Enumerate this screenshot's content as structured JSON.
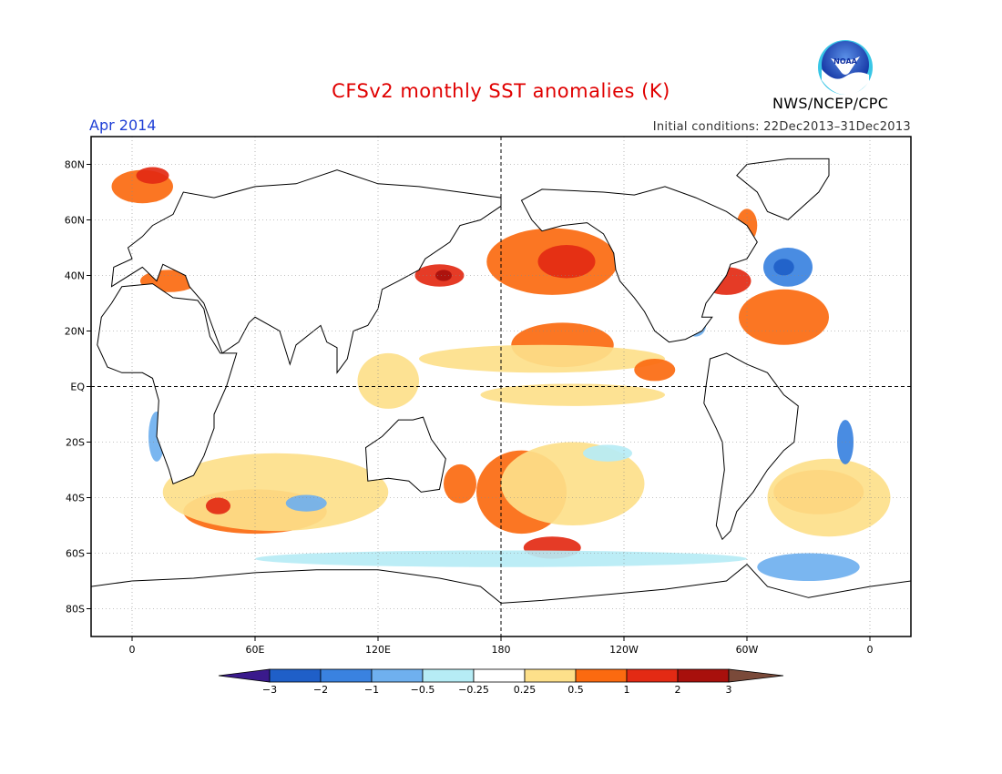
{
  "header": {
    "title": "CFSv2 monthly SST anomalies (K)",
    "month": "Apr 2014",
    "initial_conditions": "Initial conditions: 22Dec2013–31Dec2013",
    "agency": "NWS/NCEP/CPC",
    "logo_text": "NOAA"
  },
  "axes": {
    "lat_labels": [
      "80N",
      "60N",
      "40N",
      "20N",
      "EQ",
      "20S",
      "40S",
      "60S",
      "80S"
    ],
    "lat_values": [
      80,
      60,
      40,
      20,
      0,
      -20,
      -40,
      -60,
      -80
    ],
    "lon_labels": [
      "0",
      "60E",
      "120E",
      "180",
      "120W",
      "60W",
      "0"
    ],
    "lon_values": [
      0,
      60,
      120,
      180,
      240,
      300,
      360
    ],
    "lon_range": [
      -20,
      380
    ],
    "lat_range": [
      -90,
      90
    ]
  },
  "colorbar": {
    "labels": [
      "-3",
      "-2",
      "-1",
      "-0.5",
      "-0.25",
      "0.25",
      "0.5",
      "1",
      "2",
      "3"
    ],
    "colors": [
      "#3a1a8c",
      "#1f5fc8",
      "#3a82e0",
      "#6fb0ef",
      "#b6ecf5",
      "#ffffff",
      "#fde08a",
      "#fb6a10",
      "#e32a14",
      "#a8100c",
      "#7a4a3a"
    ]
  },
  "anomaly_regions": [
    {
      "label": "North Pacific warm",
      "lon": 205,
      "lat": 45,
      "rx": 32,
      "ry": 12,
      "color": "#fb6a10"
    },
    {
      "label": "North Pacific core",
      "lon": 212,
      "lat": 45,
      "rx": 14,
      "ry": 6,
      "color": "#e32a14"
    },
    {
      "label": "Kuroshio warm",
      "lon": 150,
      "lat": 40,
      "rx": 12,
      "ry": 4,
      "color": "#e32a14"
    },
    {
      "label": "Kuroshio core",
      "lon": 152,
      "lat": 40,
      "rx": 4,
      "ry": 2,
      "color": "#a8100c"
    },
    {
      "label": "Tropical N Pacific",
      "lon": 210,
      "lat": 15,
      "rx": 25,
      "ry": 8,
      "color": "#fb6a10"
    },
    {
      "label": "Tropical N Pacific band",
      "lon": 200,
      "lat": 10,
      "rx": 60,
      "ry": 5,
      "color": "#fde08a"
    },
    {
      "label": "Equatorial Pacific",
      "lon": 215,
      "lat": -3,
      "rx": 45,
      "ry": 4,
      "color": "#fde08a"
    },
    {
      "label": "East Pacific warm",
      "lon": 255,
      "lat": 6,
      "rx": 10,
      "ry": 4,
      "color": "#fb6a10"
    },
    {
      "label": "South Pacific warm",
      "lon": 190,
      "lat": -38,
      "rx": 22,
      "ry": 15,
      "color": "#fb6a10"
    },
    {
      "label": "South Pacific band",
      "lon": 215,
      "lat": -35,
      "rx": 35,
      "ry": 15,
      "color": "#fde08a"
    },
    {
      "label": "South Pacific core",
      "lon": 205,
      "lat": -58,
      "rx": 14,
      "ry": 4,
      "color": "#e32a14"
    },
    {
      "label": "South Indian warm",
      "lon": 60,
      "lat": -45,
      "rx": 35,
      "ry": 8,
      "color": "#fb6a10"
    },
    {
      "label": "South Indian band",
      "lon": 70,
      "lat": -38,
      "rx": 55,
      "ry": 14,
      "color": "#fde08a"
    },
    {
      "label": "South Indian core",
      "lon": 42,
      "lat": -43,
      "rx": 6,
      "ry": 3,
      "color": "#e32a14"
    },
    {
      "label": "South Indian cool",
      "lon": 85,
      "lat": -42,
      "rx": 10,
      "ry": 3,
      "color": "#6fb0ef"
    },
    {
      "label": "North Atlantic warm",
      "lon": 318,
      "lat": 25,
      "rx": 22,
      "ry": 10,
      "color": "#fb6a10"
    },
    {
      "label": "Gulf Stream",
      "lon": 290,
      "lat": 38,
      "rx": 12,
      "ry": 5,
      "color": "#e32a14"
    },
    {
      "label": "North Atlantic cold",
      "lon": 320,
      "lat": 43,
      "rx": 12,
      "ry": 7,
      "color": "#3a82e0"
    },
    {
      "label": "North Atlantic cold core",
      "lon": 318,
      "lat": 43,
      "rx": 5,
      "ry": 3,
      "color": "#1f5fc8"
    },
    {
      "label": "Labrador warm",
      "lon": 300,
      "lat": 58,
      "rx": 5,
      "ry": 6,
      "color": "#fb6a10"
    },
    {
      "label": "Nordic warm",
      "lon": 5,
      "lat": 72,
      "rx": 15,
      "ry": 6,
      "color": "#fb6a10"
    },
    {
      "label": "Nordic core",
      "lon": 10,
      "lat": 76,
      "rx": 8,
      "ry": 3,
      "color": "#e32a14"
    },
    {
      "label": "Mediterranean warm",
      "lon": 18,
      "lat": 38,
      "rx": 14,
      "ry": 4,
      "color": "#fb6a10"
    },
    {
      "label": "South Atlantic warm",
      "lon": 335,
      "lat": -38,
      "rx": 22,
      "ry": 8,
      "color": "#fb6a10"
    },
    {
      "label": "South Atlantic band",
      "lon": 340,
      "lat": -40,
      "rx": 30,
      "ry": 14,
      "color": "#fde08a"
    },
    {
      "label": "Southern Ocean cold",
      "lon": 330,
      "lat": -65,
      "rx": 25,
      "ry": 5,
      "color": "#6fb0ef"
    },
    {
      "label": "Southern Ocean band",
      "lon": 180,
      "lat": -62,
      "rx": 120,
      "ry": 3,
      "color": "#b6ecf5"
    },
    {
      "label": "Benguela cool",
      "lon": 12,
      "lat": -18,
      "rx": 4,
      "ry": 9,
      "color": "#6fb0ef"
    },
    {
      "label": "Brazil cool",
      "lon": 348,
      "lat": -20,
      "rx": 4,
      "ry": 8,
      "color": "#3a82e0"
    },
    {
      "label": "Caribbean cool",
      "lon": 275,
      "lat": 22,
      "rx": 5,
      "ry": 4,
      "color": "#6fb0ef"
    },
    {
      "label": "Central Pacific cool",
      "lon": 232,
      "lat": -24,
      "rx": 12,
      "ry": 3,
      "color": "#b6ecf5"
    },
    {
      "label": "Tasman warm",
      "lon": 160,
      "lat": -35,
      "rx": 8,
      "ry": 7,
      "color": "#fb6a10"
    },
    {
      "label": "Maritime continent",
      "lon": 125,
      "lat": 2,
      "rx": 15,
      "ry": 10,
      "color": "#fde08a"
    }
  ],
  "continents": [
    {
      "name": "North America",
      "points": [
        [
          190,
          67
        ],
        [
          200,
          71
        ],
        [
          230,
          70
        ],
        [
          245,
          69
        ],
        [
          260,
          72
        ],
        [
          275,
          68
        ],
        [
          290,
          63
        ],
        [
          300,
          58
        ],
        [
          305,
          52
        ],
        [
          300,
          46
        ],
        [
          292,
          44
        ],
        [
          290,
          40
        ],
        [
          285,
          35
        ],
        [
          280,
          30
        ],
        [
          278,
          25
        ],
        [
          283,
          25
        ],
        [
          278,
          20
        ],
        [
          270,
          17
        ],
        [
          262,
          16
        ],
        [
          255,
          20
        ],
        [
          250,
          27
        ],
        [
          245,
          32
        ],
        [
          238,
          38
        ],
        [
          236,
          42
        ],
        [
          235,
          48
        ],
        [
          230,
          55
        ],
        [
          222,
          59
        ],
        [
          210,
          58
        ],
        [
          200,
          56
        ],
        [
          195,
          60
        ],
        [
          190,
          67
        ]
      ]
    },
    {
      "name": "Greenland",
      "points": [
        [
          300,
          80
        ],
        [
          320,
          82
        ],
        [
          340,
          82
        ],
        [
          340,
          76
        ],
        [
          335,
          70
        ],
        [
          320,
          60
        ],
        [
          310,
          63
        ],
        [
          305,
          70
        ],
        [
          295,
          76
        ],
        [
          300,
          80
        ]
      ]
    },
    {
      "name": "South America",
      "points": [
        [
          282,
          10
        ],
        [
          290,
          12
        ],
        [
          300,
          8
        ],
        [
          310,
          5
        ],
        [
          318,
          -3
        ],
        [
          325,
          -7
        ],
        [
          323,
          -20
        ],
        [
          318,
          -23
        ],
        [
          310,
          -30
        ],
        [
          303,
          -38
        ],
        [
          295,
          -45
        ],
        [
          292,
          -52
        ],
        [
          288,
          -55
        ],
        [
          285,
          -50
        ],
        [
          287,
          -40
        ],
        [
          289,
          -30
        ],
        [
          288,
          -20
        ],
        [
          285,
          -15
        ],
        [
          279,
          -6
        ],
        [
          280,
          0
        ],
        [
          282,
          10
        ]
      ]
    },
    {
      "name": "Africa",
      "points": [
        [
          -17,
          15
        ],
        [
          -15,
          25
        ],
        [
          -10,
          30
        ],
        [
          -5,
          36
        ],
        [
          10,
          37
        ],
        [
          20,
          32
        ],
        [
          32,
          31
        ],
        [
          35,
          28
        ],
        [
          38,
          18
        ],
        [
          43,
          12
        ],
        [
          51,
          12
        ],
        [
          46,
          0
        ],
        [
          40,
          -10
        ],
        [
          40,
          -15
        ],
        [
          35,
          -25
        ],
        [
          30,
          -32
        ],
        [
          20,
          -35
        ],
        [
          18,
          -30
        ],
        [
          12,
          -18
        ],
        [
          13,
          -5
        ],
        [
          10,
          3
        ],
        [
          5,
          5
        ],
        [
          -5,
          5
        ],
        [
          -12,
          7
        ],
        [
          -17,
          15
        ]
      ]
    },
    {
      "name": "Eurasia",
      "points": [
        [
          -10,
          36
        ],
        [
          -9,
          43
        ],
        [
          0,
          46
        ],
        [
          -2,
          50
        ],
        [
          5,
          54
        ],
        [
          10,
          58
        ],
        [
          20,
          62
        ],
        [
          25,
          70
        ],
        [
          40,
          68
        ],
        [
          60,
          72
        ],
        [
          80,
          73
        ],
        [
          100,
          78
        ],
        [
          120,
          73
        ],
        [
          140,
          72
        ],
        [
          160,
          70
        ],
        [
          180,
          68
        ],
        [
          180,
          65
        ],
        [
          170,
          60
        ],
        [
          160,
          58
        ],
        [
          155,
          52
        ],
        [
          143,
          46
        ],
        [
          140,
          42
        ],
        [
          130,
          38
        ],
        [
          122,
          35
        ],
        [
          120,
          28
        ],
        [
          115,
          22
        ],
        [
          108,
          20
        ],
        [
          105,
          10
        ],
        [
          100,
          5
        ],
        [
          100,
          14
        ],
        [
          95,
          16
        ],
        [
          92,
          22
        ],
        [
          80,
          15
        ],
        [
          77,
          8
        ],
        [
          72,
          20
        ],
        [
          60,
          25
        ],
        [
          57,
          23
        ],
        [
          52,
          16
        ],
        [
          44,
          12
        ],
        [
          40,
          20
        ],
        [
          35,
          30
        ],
        [
          28,
          36
        ],
        [
          26,
          40
        ],
        [
          15,
          44
        ],
        [
          12,
          38
        ],
        [
          5,
          43
        ],
        [
          -10,
          36
        ]
      ]
    },
    {
      "name": "Australia",
      "points": [
        [
          114,
          -22
        ],
        [
          122,
          -18
        ],
        [
          130,
          -12
        ],
        [
          137,
          -12
        ],
        [
          142,
          -11
        ],
        [
          146,
          -19
        ],
        [
          153,
          -26
        ],
        [
          150,
          -37
        ],
        [
          141,
          -38
        ],
        [
          135,
          -34
        ],
        [
          125,
          -33
        ],
        [
          115,
          -34
        ],
        [
          114,
          -22
        ]
      ]
    },
    {
      "name": "Antarctica",
      "points": [
        [
          -20,
          -72
        ],
        [
          0,
          -70
        ],
        [
          30,
          -69
        ],
        [
          60,
          -67
        ],
        [
          90,
          -66
        ],
        [
          120,
          -66
        ],
        [
          150,
          -69
        ],
        [
          170,
          -72
        ],
        [
          180,
          -78
        ],
        [
          200,
          -77
        ],
        [
          230,
          -75
        ],
        [
          260,
          -73
        ],
        [
          290,
          -70
        ],
        [
          300,
          -64
        ],
        [
          310,
          -72
        ],
        [
          330,
          -76
        ],
        [
          360,
          -72
        ],
        [
          380,
          -70
        ],
        [
          380,
          -90
        ],
        [
          -20,
          -90
        ],
        [
          -20,
          -72
        ]
      ]
    }
  ]
}
